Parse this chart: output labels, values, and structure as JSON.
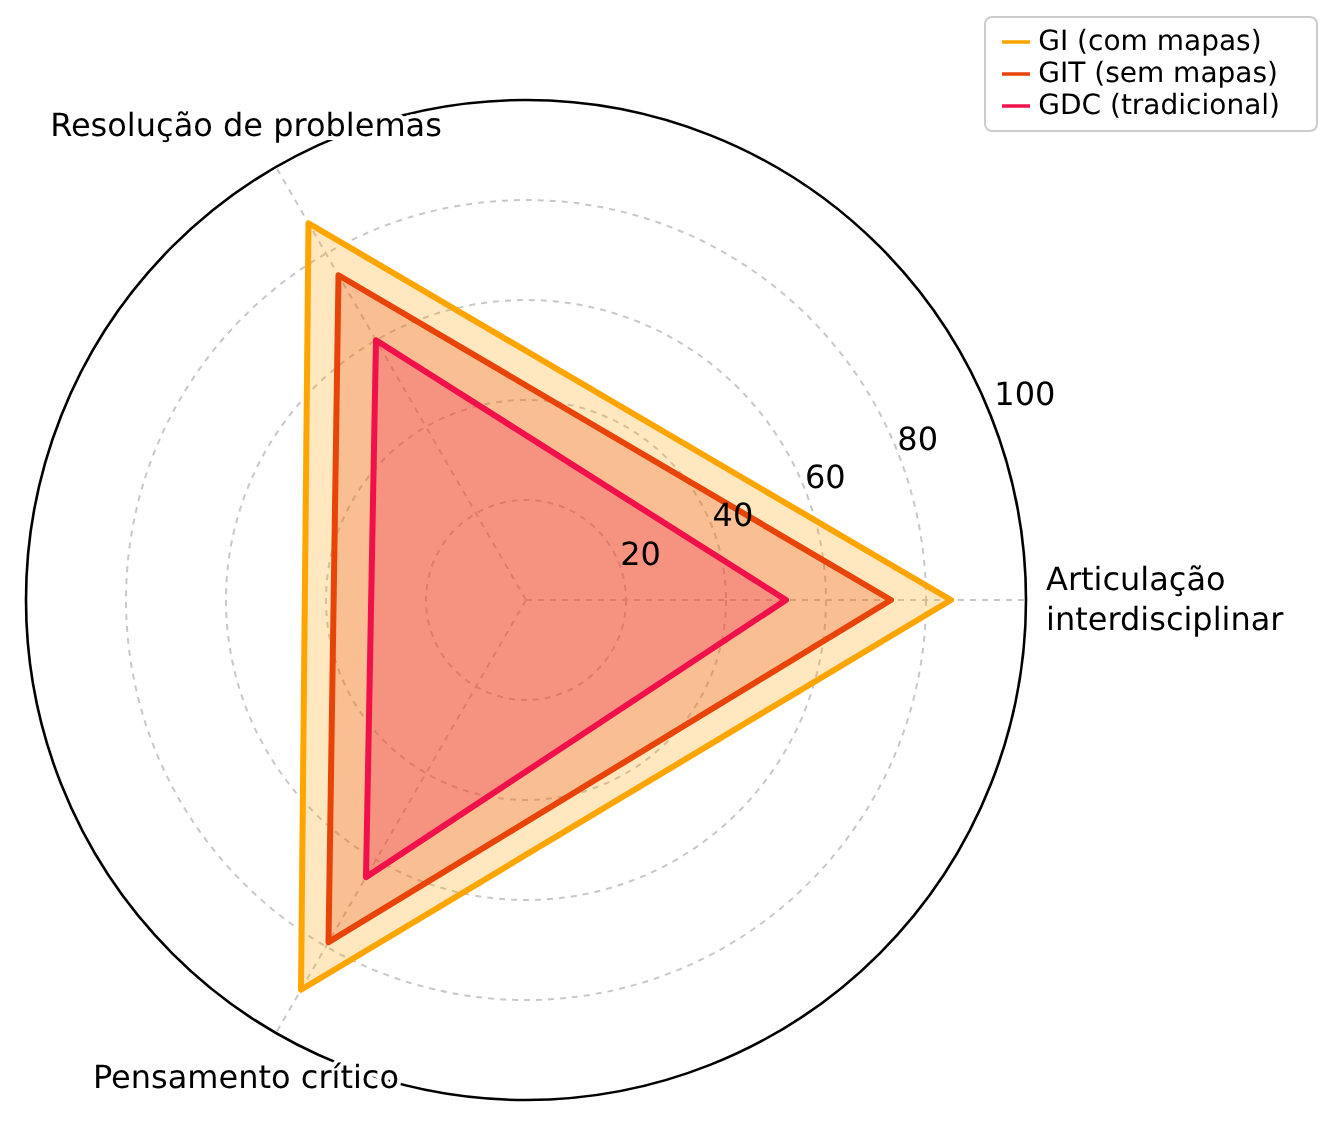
{
  "chart_data": {
    "type": "radar",
    "categories": [
      "Articulação interdisciplinar",
      "Pensamento crítico",
      "Resolução de problemas"
    ],
    "series": [
      {
        "name": "GI (com mapas)",
        "color": "#ffa500",
        "values": [
          85,
          90,
          87
        ]
      },
      {
        "name": "GIT (sem mapas)",
        "color": "#e8440a",
        "values": [
          73,
          79,
          75
        ]
      },
      {
        "name": "GDC (tradicional)",
        "color": "#f0104a",
        "values": [
          52,
          64,
          60
        ]
      }
    ],
    "ylim": [
      0,
      100
    ],
    "yticks": [
      20,
      40,
      60,
      80,
      100
    ],
    "grid": true,
    "legend": "top right"
  }
}
